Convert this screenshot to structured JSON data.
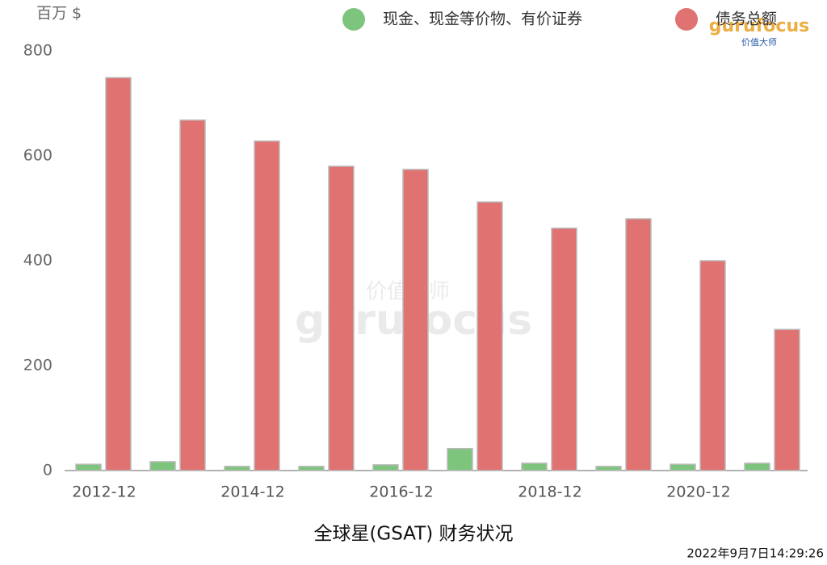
{
  "chart_data": {
    "type": "bar",
    "title": "全球星(GSAT) 财务状况",
    "y_unit": "百万 $",
    "timestamp": "2022年9月7日14:29:26",
    "watermark": {
      "text": "gurufocus",
      "subtext": "价值大师"
    },
    "categories": [
      "2012-12",
      null,
      "2014-12",
      null,
      "2016-12",
      null,
      "2018-12",
      null,
      "2020-12",
      null
    ],
    "series": [
      {
        "name": "现金、现金等价物、有价证券",
        "color": "#7dc47d",
        "values": [
          12,
          17,
          8,
          8,
          11,
          42,
          14,
          8,
          12,
          14
        ]
      },
      {
        "name": "债务总额",
        "color": "#e07272",
        "values": [
          749,
          668,
          628,
          580,
          574,
          512,
          462,
          480,
          400,
          269
        ]
      }
    ],
    "ylim": [
      0,
      800
    ],
    "yticks": [
      0,
      200,
      400,
      600,
      800
    ],
    "legend": "top-right"
  }
}
